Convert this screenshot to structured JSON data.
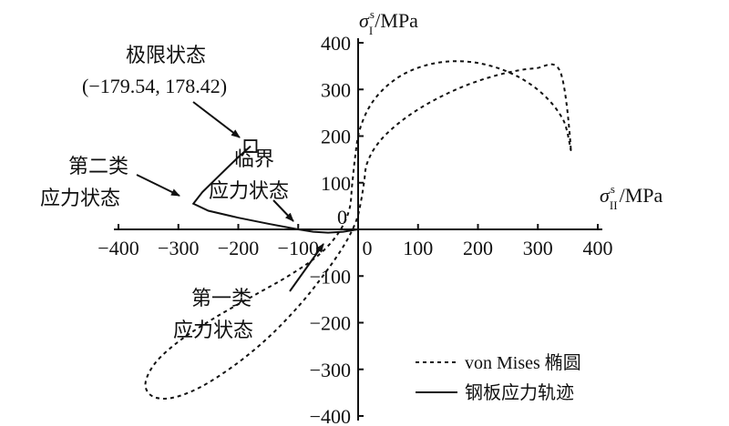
{
  "chart_data": {
    "type": "line",
    "x_axis": {
      "label_symbol": "σ",
      "label_superscript": "s",
      "label_subscript": "II",
      "label_unit": "/MPa",
      "range": [
        -400,
        400
      ],
      "ticks": [
        -400,
        -300,
        -200,
        -100,
        0,
        100,
        200,
        300,
        400
      ],
      "tick_labels": [
        "−400",
        "−300",
        "−200",
        "−100",
        "0",
        "100",
        "200",
        "300",
        "400"
      ]
    },
    "y_axis": {
      "label_symbol": "σ",
      "label_superscript": "s",
      "label_subscript": "I",
      "label_unit": "/MPa",
      "range": [
        -400,
        400
      ],
      "ticks": [
        -400,
        -300,
        -200,
        -100,
        0,
        100,
        200,
        300,
        400
      ],
      "tick_labels": [
        "−400",
        "−300",
        "−200",
        "−100",
        "0",
        "100",
        "200",
        "300",
        "400"
      ],
      "zero_label": "0"
    },
    "grid": false,
    "legend_position": "bottom-right",
    "series": [
      {
        "name": "von Mises 椭圆",
        "style": "dashed",
        "color": "#111111",
        "note_type": "ellipse",
        "x": [
          355,
          343,
          310,
          263,
          207,
          151,
          99,
          56,
          23,
          3,
          -5,
          -10,
          -15,
          -33,
          -66,
          -114,
          -173,
          -236,
          -294,
          -337,
          -355,
          -343,
          -310,
          -263,
          -207,
          -151,
          -99,
          -56,
          -23,
          -3,
          5,
          10,
          15,
          33,
          66,
          114,
          173,
          236,
          294,
          337,
          355
        ],
        "y": [
          173,
          233,
          288,
          330,
          355,
          360,
          346,
          316,
          271,
          215,
          155,
          95,
          41,
          -8,
          -55,
          -98,
          -141,
          -187,
          -235,
          -284,
          -330,
          -358,
          -361,
          -338,
          -292,
          -233,
          -164,
          -95,
          -33,
          19,
          62,
          102,
          142,
          184,
          226,
          268,
          305,
          332,
          345,
          339,
          173
        ]
      },
      {
        "name": "钢板应力轨迹",
        "style": "solid",
        "color": "#111111",
        "x": [
          0,
          -25,
          -50,
          -75,
          -100,
          -150,
          -200,
          -250,
          -275,
          -260,
          -240,
          -220,
          -200,
          -179.54
        ],
        "y": [
          0,
          -5,
          -7,
          -5,
          0,
          12,
          25,
          40,
          55,
          80,
          105,
          130,
          155,
          178.42
        ]
      }
    ],
    "limit_point": {
      "x": -179.54,
      "y": 178.42
    },
    "annotations": [
      {
        "id": "limit-state",
        "lines": [
          "极限状态",
          "(−179.54, 178.42)"
        ]
      },
      {
        "id": "critical-state",
        "lines": [
          "临界",
          "应力状态"
        ]
      },
      {
        "id": "second-class",
        "lines": [
          "第二类",
          "应力状态"
        ]
      },
      {
        "id": "first-class",
        "lines": [
          "第一类",
          "应力状态"
        ]
      }
    ]
  }
}
